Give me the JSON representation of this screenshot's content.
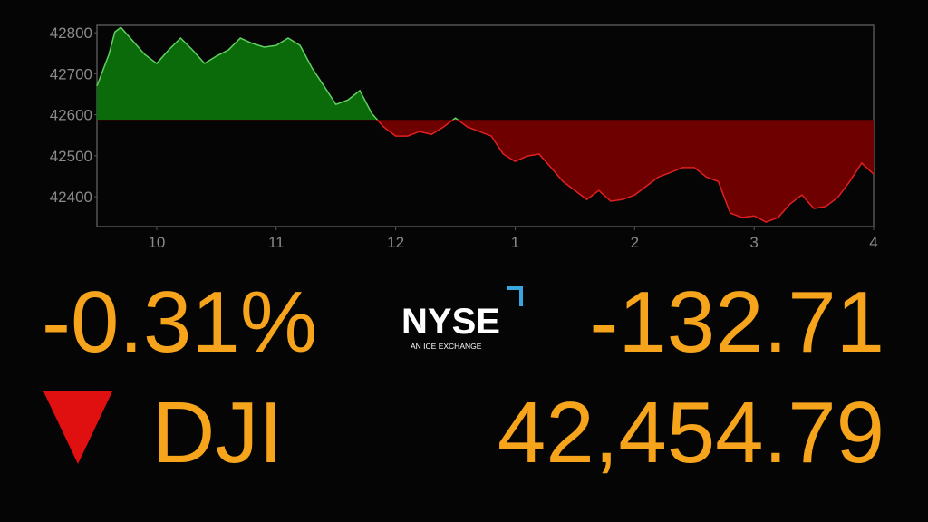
{
  "chart_data": {
    "type": "area",
    "x": [
      9.5,
      9.6,
      9.65,
      9.7,
      9.8,
      9.9,
      10,
      10.1,
      10.2,
      10.3,
      10.4,
      10.5,
      10.6,
      10.7,
      10.8,
      10.9,
      11,
      11.1,
      11.2,
      11.3,
      11.4,
      11.5,
      11.6,
      11.7,
      11.8,
      11.9,
      12,
      12.1,
      12.2,
      12.3,
      12.4,
      12.5,
      12.6,
      12.7,
      12.8,
      12.9,
      13,
      13.1,
      13.2,
      13.3,
      13.4,
      13.5,
      13.6,
      13.7,
      13.8,
      13.9,
      14,
      14.1,
      14.2,
      14.3,
      14.4,
      14.5,
      14.6,
      14.7,
      14.8,
      14.9,
      15,
      15.1,
      15.2,
      15.3,
      15.4,
      15.5,
      15.6,
      15.7,
      15.8,
      15.9,
      16
    ],
    "values": [
      42670,
      42747,
      42802,
      42813,
      42780,
      42747,
      42725,
      42758,
      42787,
      42758,
      42725,
      42743,
      42758,
      42787,
      42774,
      42765,
      42769,
      42787,
      42769,
      42714,
      42670,
      42625,
      42636,
      42659,
      42603,
      42570,
      42548,
      42548,
      42559,
      42552,
      42570,
      42592,
      42570,
      42559,
      42548,
      42504,
      42486,
      42499,
      42504,
      42471,
      42437,
      42415,
      42393,
      42415,
      42389,
      42393,
      42404,
      42426,
      42448,
      42459,
      42471,
      42471,
      42448,
      42437,
      42360,
      42349,
      42353,
      42338,
      42349,
      42382,
      42404,
      42371,
      42376,
      42398,
      42437,
      42482,
      42455
    ],
    "baseline": 42587.5,
    "colors": {
      "above": "#0b6b0b",
      "above_line": "#5fcf5f",
      "below": "#6e0000",
      "below_line": "#e02020"
    },
    "xlim": [
      9.5,
      16
    ],
    "xticks": [
      10,
      11,
      12,
      {
        "value": 13,
        "label": "1"
      },
      {
        "value": 14,
        "label": "2"
      },
      {
        "value": 15,
        "label": "3"
      },
      {
        "value": 16,
        "label": "4"
      }
    ],
    "ylim": [
      42327,
      42818
    ],
    "yticks": [
      42400,
      42500,
      42600,
      42700,
      42800
    ]
  },
  "quote": {
    "change_percent": "-0.31%",
    "symbol": "DJI",
    "change_points": "-132.71",
    "price": "42,454.79"
  },
  "logo": {
    "name": "NYSE",
    "tagline": "AN ICE EXCHANGE"
  }
}
